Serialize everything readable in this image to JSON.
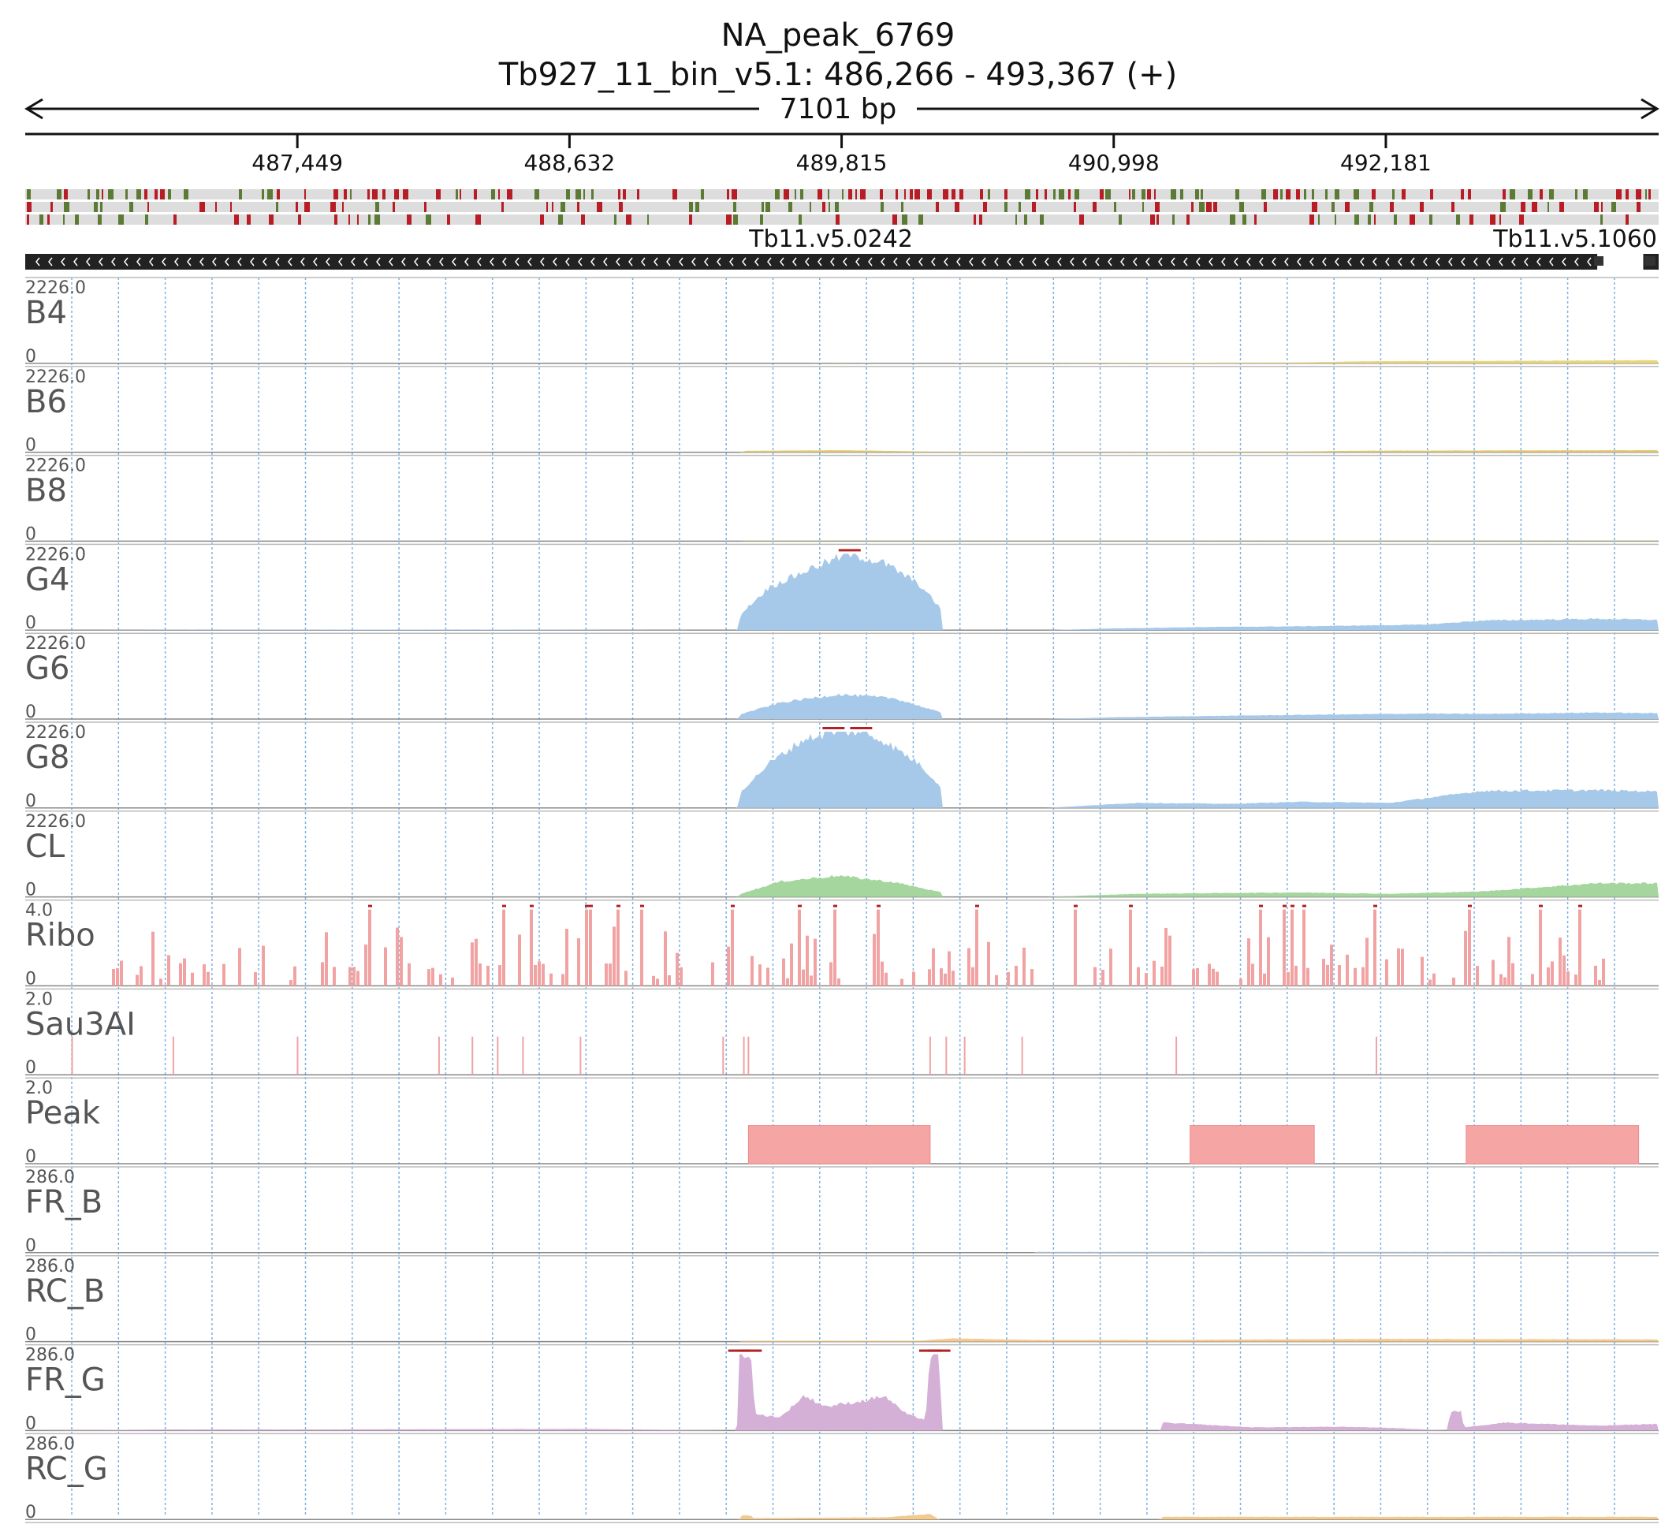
{
  "title": "NA_peak_6769",
  "subtitle": "Tb927_11_bin_v5.1: 486,266 - 493,367 (+)",
  "span_label": "7101 bp",
  "region": {
    "chrom": "Tb927_11_bin_v5.1",
    "start": 486266,
    "end": 493367
  },
  "ruler_ticks": [
    {
      "pos": 487449,
      "label": "487,449"
    },
    {
      "pos": 488632,
      "label": "488,632"
    },
    {
      "pos": 489815,
      "label": "489,815"
    },
    {
      "pos": 490998,
      "label": "490,998"
    },
    {
      "pos": 492181,
      "label": "492,181"
    }
  ],
  "genes": [
    {
      "name": "Tb11.v5.0242",
      "start": 486266,
      "end": 493100,
      "strand": "-"
    },
    {
      "name": "Tb11.v5.1060",
      "start": 493300,
      "end": 493367,
      "strand": "-"
    }
  ],
  "colors": {
    "grid": "#7fb1e0",
    "pos_tick": "#2f2f2f",
    "neg_tick": "#ffffff",
    "gene_body": "#222222",
    "overflow": "#b22222",
    "seq_a": "#b81c24",
    "seq_b": "#5b7a33",
    "seq_bg": "#dddddd"
  },
  "chart_data": {
    "type": "area",
    "x_unit": "bp",
    "tracks": [
      {
        "label": "B4",
        "ymax_label": "2226.0",
        "ymin_label": "0",
        "ymax": 2226,
        "color": "#ead77a",
        "profile": [
          [
            486266,
            0
          ],
          [
            489600,
            0
          ],
          [
            489800,
            6
          ],
          [
            490200,
            4
          ],
          [
            490650,
            10
          ],
          [
            491800,
            25
          ],
          [
            492100,
            60
          ],
          [
            492600,
            70
          ],
          [
            493367,
            90
          ]
        ]
      },
      {
        "label": "B6",
        "ymax_label": "2226.0",
        "ymin_label": "0",
        "ymax": 2226,
        "color": "#e3c86e",
        "profile": [
          [
            486266,
            0
          ],
          [
            489370,
            0
          ],
          [
            489400,
            40
          ],
          [
            489800,
            60
          ],
          [
            490200,
            20
          ],
          [
            490650,
            8
          ],
          [
            491800,
            22
          ],
          [
            492100,
            45
          ],
          [
            493367,
            60
          ]
        ]
      },
      {
        "label": "B8",
        "ymax_label": "2226.0",
        "ymin_label": "0",
        "ymax": 2226,
        "color": "#b6c46b",
        "profile": [
          [
            486266,
            0
          ],
          [
            489370,
            0
          ],
          [
            489400,
            15
          ],
          [
            490000,
            12
          ],
          [
            490650,
            8
          ],
          [
            493367,
            15
          ]
        ]
      },
      {
        "label": "G4",
        "ymax_label": "2226.0",
        "ymin_label": "0",
        "ymax": 2226,
        "color": "#a7c9e9",
        "profile": [
          [
            486266,
            0
          ],
          [
            487000,
            12
          ],
          [
            488200,
            18
          ],
          [
            489360,
            0
          ],
          [
            489380,
            500
          ],
          [
            489500,
            1250
          ],
          [
            489700,
            1850
          ],
          [
            489850,
            2226
          ],
          [
            490000,
            1950
          ],
          [
            490150,
            1350
          ],
          [
            490250,
            600
          ],
          [
            490240,
            0
          ],
          [
            490700,
            0
          ],
          [
            491000,
            50
          ],
          [
            491400,
            90
          ],
          [
            491800,
            110
          ],
          [
            492350,
            160
          ],
          [
            492600,
            280
          ],
          [
            493100,
            330
          ],
          [
            493367,
            300
          ]
        ]
      },
      {
        "label": "G6",
        "ymax_label": "2226.0",
        "ymin_label": "0",
        "ymax": 2226,
        "color": "#a7c9e9",
        "profile": [
          [
            486266,
            0
          ],
          [
            489360,
            0
          ],
          [
            489380,
            150
          ],
          [
            489550,
            480
          ],
          [
            489800,
            720
          ],
          [
            490050,
            600
          ],
          [
            490250,
            180
          ],
          [
            490240,
            0
          ],
          [
            490700,
            0
          ],
          [
            491000,
            50
          ],
          [
            491400,
            90
          ],
          [
            491800,
            120
          ],
          [
            492350,
            160
          ],
          [
            492600,
            150
          ],
          [
            493100,
            190
          ],
          [
            493367,
            170
          ]
        ]
      },
      {
        "label": "G8",
        "ymax_label": "2226.0",
        "ymin_label": "0",
        "ymax": 2226,
        "color": "#a7c9e9",
        "profile": [
          [
            486266,
            0
          ],
          [
            489360,
            0
          ],
          [
            489380,
            500
          ],
          [
            489500,
            1300
          ],
          [
            489650,
            2000
          ],
          [
            489780,
            2226
          ],
          [
            489900,
            2226
          ],
          [
            490000,
            1950
          ],
          [
            490150,
            1300
          ],
          [
            490250,
            600
          ],
          [
            490240,
            0
          ],
          [
            490700,
            0
          ],
          [
            491100,
            150
          ],
          [
            491500,
            120
          ],
          [
            491800,
            180
          ],
          [
            492200,
            150
          ],
          [
            492600,
            500
          ],
          [
            493100,
            520
          ],
          [
            493367,
            480
          ]
        ]
      },
      {
        "label": "CL",
        "ymax_label": "2226.0",
        "ymin_label": "0",
        "ymax": 2226,
        "color": "#a4d69d",
        "profile": [
          [
            486266,
            0
          ],
          [
            489360,
            0
          ],
          [
            489380,
            100
          ],
          [
            489550,
            450
          ],
          [
            489800,
            620
          ],
          [
            490050,
            420
          ],
          [
            490250,
            130
          ],
          [
            490240,
            0
          ],
          [
            490700,
            0
          ],
          [
            491100,
            90
          ],
          [
            491600,
            120
          ],
          [
            491800,
            130
          ],
          [
            492200,
            90
          ],
          [
            492600,
            160
          ],
          [
            493100,
            400
          ],
          [
            493367,
            400
          ]
        ]
      },
      {
        "label": "Ribo",
        "ymax_label": "4.0",
        "ymin_label": "0",
        "ymax": 4.0,
        "color": "#f1a3a3",
        "bars": "sparse_signal"
      },
      {
        "label": "Sau3AI",
        "ymax_label": "2.0",
        "ymin_label": "0",
        "ymax": 2.0,
        "color": "#f1a3a3",
        "sites": [
          486470,
          486910,
          487450,
          488065,
          488210,
          488320,
          488430,
          488680,
          489300,
          489390,
          489410,
          490200,
          490270,
          490350,
          490600,
          491270,
          492140
        ]
      },
      {
        "label": "Peak",
        "ymax_label": "2.0",
        "ymin_label": "0",
        "ymax": 2.0,
        "color": "#f6a5a5",
        "intervals": [
          [
            489410,
            490200,
            1.0
          ],
          [
            491330,
            491870,
            1.0
          ],
          [
            492530,
            493280,
            1.0
          ]
        ]
      },
      {
        "label": "FR_B",
        "ymax_label": "286.0",
        "ymin_label": "0",
        "ymax": 286,
        "color": "#a7c9e9",
        "profile": [
          [
            486266,
            0
          ],
          [
            490650,
            0
          ],
          [
            490660,
            3
          ],
          [
            493367,
            3
          ]
        ]
      },
      {
        "label": "RC_B",
        "ymax_label": "286.0",
        "ymin_label": "0",
        "ymax": 286,
        "color": "#f3c98c",
        "profile": [
          [
            486266,
            0
          ],
          [
            489370,
            0
          ],
          [
            489380,
            3
          ],
          [
            490150,
            3
          ],
          [
            490300,
            12
          ],
          [
            490650,
            6
          ],
          [
            491200,
            6
          ],
          [
            492200,
            10
          ],
          [
            493367,
            8
          ]
        ]
      },
      {
        "label": "FR_G",
        "ymax_label": "286.0",
        "ymin_label": "0",
        "ymax": 286,
        "color": "#d4b0d6",
        "profile": [
          [
            486266,
            0
          ],
          [
            486900,
            4
          ],
          [
            487500,
            4
          ],
          [
            488700,
            6
          ],
          [
            489360,
            0
          ],
          [
            489370,
            286
          ],
          [
            489420,
            286
          ],
          [
            489440,
            60
          ],
          [
            489550,
            50
          ],
          [
            489650,
            130
          ],
          [
            489750,
            90
          ],
          [
            489900,
            110
          ],
          [
            490000,
            130
          ],
          [
            490100,
            60
          ],
          [
            490180,
            40
          ],
          [
            490200,
            286
          ],
          [
            490240,
            286
          ],
          [
            490250,
            0
          ],
          [
            491200,
            0
          ],
          [
            491210,
            30
          ],
          [
            491600,
            12
          ],
          [
            492000,
            14
          ],
          [
            492200,
            10
          ],
          [
            492450,
            0
          ],
          [
            492460,
            70
          ],
          [
            492510,
            70
          ],
          [
            492520,
            12
          ],
          [
            492700,
            30
          ],
          [
            493100,
            18
          ],
          [
            493367,
            25
          ]
        ]
      },
      {
        "label": "RC_G",
        "ymax_label": "286.0",
        "ymin_label": "0",
        "ymax": 286,
        "color": "#f3c98c",
        "profile": [
          [
            486266,
            0
          ],
          [
            489370,
            0
          ],
          [
            489380,
            15
          ],
          [
            489420,
            15
          ],
          [
            489430,
            5
          ],
          [
            490000,
            8
          ],
          [
            490200,
            20
          ],
          [
            490240,
            0
          ],
          [
            491200,
            0
          ],
          [
            491210,
            10
          ],
          [
            493367,
            10
          ]
        ]
      }
    ]
  }
}
